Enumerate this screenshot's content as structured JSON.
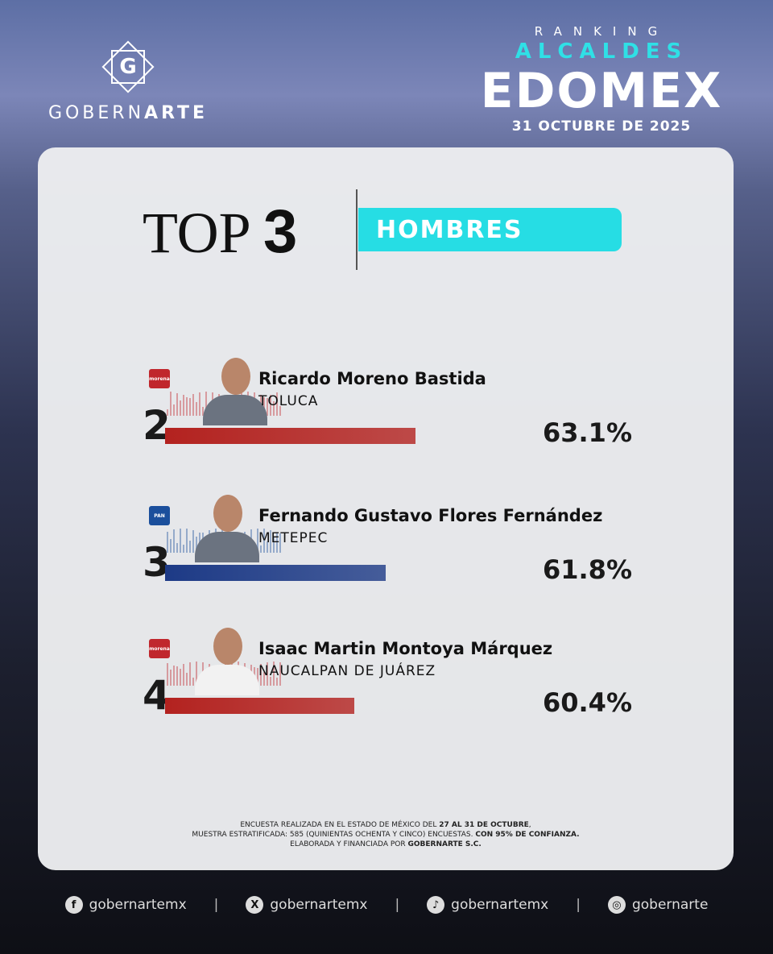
{
  "brand": {
    "logo_letter": "G",
    "name_part1": "GOBERN",
    "name_part2": "ARTE"
  },
  "header": {
    "ranking": "RANKING",
    "alcaldes": "ALCALDES",
    "edomex": "EDOMEX",
    "date": "31 OCTUBRE DE 2025"
  },
  "title": {
    "top": "TOP",
    "number": "3",
    "category": "HOMBRES",
    "accent": "#26dde4"
  },
  "candidates": [
    {
      "rank": "2",
      "name": "Ricardo Moreno Bastida",
      "municipality": "TOLUCA",
      "party": "morena",
      "party_color": "#c0272d",
      "bar_color": "#b3221f",
      "value": 63.1,
      "value_label": "63.1%"
    },
    {
      "rank": "3",
      "name": "Fernando Gustavo Flores Fernández",
      "municipality": "METEPEC",
      "party": "PAN",
      "party_color": "#1b4f9c",
      "bar_color": "#1d3a86",
      "value": 61.8,
      "value_label": "61.8%"
    },
    {
      "rank": "4",
      "name": "Isaac Martin Montoya Márquez",
      "municipality": "NAUCALPAN DE JUÁREZ",
      "party": "morena",
      "party_color": "#c0272d",
      "bar_color": "#b3221f",
      "value": 60.4,
      "value_label": "60.4%"
    }
  ],
  "note": {
    "l1a": "ENCUESTA REALIZADA EN EL ESTADO DE MÉXICO DEL ",
    "l1b": "27 AL 31 DE OCTUBRE",
    ",": ",",
    "l2a": "MUESTRA ESTRATIFICADA: 585 (QUINIENTAS OCHENTA Y CINCO) ENCUESTAS. ",
    "l2b": "CON 95% DE CONFIANZA.",
    "l3a": "ELABORADA Y FINANCIADA POR ",
    "l3b": "GOBERNARTE S.C."
  },
  "footer": [
    {
      "icon": "facebook-icon",
      "glyph": "f",
      "handle": "gobernartemx"
    },
    {
      "icon": "x-icon",
      "glyph": "X",
      "handle": "gobernartemx"
    },
    {
      "icon": "tiktok-icon",
      "glyph": "♪",
      "handle": "gobernartemx"
    },
    {
      "icon": "instagram-icon",
      "glyph": "◎",
      "handle": "gobernarte"
    }
  ],
  "separator": "|"
}
